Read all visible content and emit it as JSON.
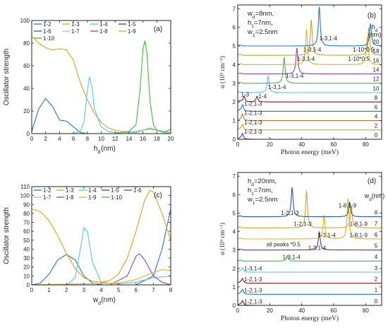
{
  "chart_data": [
    {
      "id": "a",
      "panel_label": "(a)",
      "type": "line",
      "xlabel": "h_d(nm)",
      "ylabel": "Oscillator strength",
      "xlim": [
        0,
        20
      ],
      "ylim": [
        0,
        100
      ],
      "xticks": [
        0,
        2,
        4,
        6,
        8,
        10,
        12,
        14,
        16,
        18,
        20
      ],
      "yticks": [
        0,
        20,
        40,
        60,
        80,
        100
      ],
      "legend": {
        "position": "top-left",
        "columns": 4
      },
      "series": [
        {
          "name": "1-2",
          "color": "#1f77d4",
          "x": [
            0,
            1,
            2,
            3,
            4,
            5,
            6,
            7,
            8,
            9,
            10,
            11,
            12,
            13,
            14,
            15,
            16,
            17,
            18,
            19,
            20
          ],
          "y": [
            2,
            22,
            31,
            24,
            12,
            11,
            6,
            1,
            0,
            0,
            0,
            0,
            0,
            0,
            0,
            0,
            0,
            0,
            0,
            0,
            0
          ]
        },
        {
          "name": "1-3",
          "color": "#e0a020",
          "x": [
            0,
            1,
            2,
            3,
            4,
            5,
            6,
            7,
            8,
            9,
            10,
            11,
            12,
            13,
            14,
            15,
            16,
            17,
            18,
            19,
            20
          ],
          "y": [
            86,
            80,
            76,
            74,
            75,
            74,
            65,
            45,
            30,
            18,
            10,
            5,
            3,
            2,
            1,
            1,
            3,
            5,
            3,
            1,
            0
          ]
        },
        {
          "name": "1-4",
          "color": "#4ec8e8",
          "x": [
            0,
            1,
            2,
            3,
            4,
            5,
            6,
            7,
            7.5,
            8,
            8.3,
            8.7,
            9,
            10,
            11,
            12,
            13,
            14,
            15,
            16,
            17,
            18,
            19,
            20
          ],
          "y": [
            0,
            0,
            0,
            0,
            0,
            0,
            0,
            2,
            10,
            38,
            50,
            40,
            22,
            6,
            2,
            1,
            1,
            1,
            2,
            3,
            4,
            3,
            2,
            1
          ]
        },
        {
          "name": "1-5",
          "color": "#6a2c91",
          "x": [
            0,
            20
          ],
          "y": [
            0,
            0
          ]
        },
        {
          "name": "1-6",
          "color": "#1f5aa6",
          "x": [
            0,
            20
          ],
          "y": [
            0,
            0
          ]
        },
        {
          "name": "1-7",
          "color": "#e6a4c0",
          "x": [
            0,
            20
          ],
          "y": [
            0,
            0
          ]
        },
        {
          "name": "1-8",
          "color": "#8e44ad",
          "x": [
            0,
            20
          ],
          "y": [
            0,
            0
          ]
        },
        {
          "name": "1-9",
          "color": "#e8b020",
          "x": [
            0,
            20
          ],
          "y": [
            0,
            0
          ]
        },
        {
          "name": "1-10",
          "color": "#3cbf3c",
          "x": [
            0,
            12,
            14,
            15,
            15.6,
            16,
            16.3,
            16.6,
            17,
            17.5,
            18,
            19,
            20
          ],
          "y": [
            0,
            0,
            2,
            8,
            40,
            75,
            82,
            70,
            30,
            8,
            3,
            1,
            4
          ]
        }
      ]
    },
    {
      "id": "c",
      "panel_label": "(c)",
      "type": "line",
      "xlabel": "w_d(nm)",
      "ylabel": "Oscillator strength",
      "xlim": [
        0,
        8
      ],
      "ylim": [
        0,
        110
      ],
      "xticks": [
        0,
        1,
        2,
        3,
        4,
        5,
        6,
        7,
        8
      ],
      "yticks": [
        0,
        10,
        20,
        30,
        40,
        50,
        60,
        70,
        80,
        90,
        100,
        110
      ],
      "legend": {
        "position": "top-left",
        "columns": 5
      },
      "series": [
        {
          "name": "1-2",
          "color": "#1f77d4",
          "x": [
            0,
            0.5,
            1,
            1.5,
            2,
            2.5,
            3,
            3.5,
            4,
            5,
            6,
            7,
            7.5,
            8
          ],
          "y": [
            0,
            2,
            12,
            28,
            34,
            28,
            10,
            2,
            0,
            0,
            0,
            10,
            40,
            85
          ]
        },
        {
          "name": "1-3",
          "color": "#e0a020",
          "x": [
            0,
            0.5,
            1,
            1.5,
            2,
            2.5,
            3,
            3.5,
            4,
            4.5,
            5,
            5.5,
            6,
            6.5,
            6.8,
            7,
            7.5,
            8
          ],
          "y": [
            85,
            82,
            72,
            55,
            35,
            18,
            8,
            4,
            3,
            5,
            12,
            30,
            60,
            95,
            106,
            104,
            80,
            50
          ]
        },
        {
          "name": "1-4",
          "color": "#4ec8e8",
          "x": [
            0,
            2,
            2.5,
            2.8,
            3,
            3.2,
            3.5,
            4,
            5,
            6,
            7,
            8
          ],
          "y": [
            0,
            0,
            8,
            40,
            64,
            60,
            25,
            3,
            1,
            3,
            8,
            10
          ]
        },
        {
          "name": "1-5",
          "color": "#6a2c91",
          "x": [
            0,
            8
          ],
          "y": [
            0,
            0
          ]
        },
        {
          "name": "1-6",
          "color": "#1f5aa6",
          "x": [
            0,
            8
          ],
          "y": [
            0,
            0
          ]
        },
        {
          "name": "1-7",
          "color": "#e6a4c0",
          "x": [
            0,
            8
          ],
          "y": [
            0,
            0
          ]
        },
        {
          "name": "1-8",
          "color": "#8e44ad",
          "x": [
            0,
            4.5,
            5.5,
            6,
            6.2,
            6.5,
            7,
            7.5,
            8
          ],
          "y": [
            0,
            0,
            10,
            32,
            35,
            28,
            10,
            3,
            0
          ]
        },
        {
          "name": "1-9",
          "color": "#e8b020",
          "x": [
            0,
            5,
            6,
            7,
            7.5,
            8
          ],
          "y": [
            0,
            2,
            6,
            14,
            17,
            16
          ]
        },
        {
          "name": "1-10",
          "color": "#3cbf3c",
          "x": [
            0,
            8
          ],
          "y": [
            0,
            0
          ]
        }
      ]
    },
    {
      "id": "b",
      "panel_label": "(b)",
      "type": "line",
      "xlabel": "Photon energy (meV)",
      "ylabel": "α (10⁵ cm⁻¹)",
      "xlim": [
        0,
        90
      ],
      "ylim": [
        0,
        7.2
      ],
      "xticks": [
        0,
        20,
        40,
        60,
        80
      ],
      "yticks": [
        0,
        1,
        2,
        3,
        4,
        5,
        6,
        7
      ],
      "params": [
        "w_d=8nm,",
        "h_1=7nm,",
        "w_1=2.5nm"
      ],
      "series_param_header": [
        "h_d",
        "(nm)"
      ],
      "series": [
        {
          "name": "0",
          "color": "#6a2c91",
          "offset": 0.0,
          "peaks": [
            [
              3,
              0.3
            ]
          ]
        },
        {
          "name": "2",
          "color": "#e0a020",
          "offset": 0.5,
          "peaks": [
            [
              3,
              0.3
            ]
          ]
        },
        {
          "name": "4",
          "color": "#c0722a",
          "offset": 1.0,
          "peaks": [
            [
              3,
              0.35
            ]
          ]
        },
        {
          "name": "6",
          "color": "#1f77d4",
          "offset": 1.5,
          "peaks": [
            [
              3,
              0.35
            ]
          ]
        },
        {
          "name": "8",
          "color": "#8b1a1a",
          "offset": 2.0,
          "peaks": [
            [
              4,
              0.3
            ],
            [
              12,
              0.3
            ]
          ]
        },
        {
          "name": "10",
          "color": "#4ec8e8",
          "offset": 2.5,
          "peaks": [
            [
              19,
              0.9
            ]
          ]
        },
        {
          "name": "12",
          "color": "#3cbf3c",
          "offset": 3.0,
          "peaks": [
            [
              29,
              1.4
            ]
          ]
        },
        {
          "name": "14",
          "color": "#8e44ad",
          "offset": 3.5,
          "peaks": [
            [
              37,
              1.4
            ]
          ]
        },
        {
          "name": "16",
          "color": "#e8b020",
          "offset": 4.0,
          "peaks": [
            [
              43,
              1.9
            ],
            [
              81,
              1.5
            ]
          ]
        },
        {
          "name": "18",
          "color": "#c9a227",
          "offset": 4.5,
          "peaks": [
            [
              46,
              1.9
            ],
            [
              82,
              1.5
            ]
          ]
        },
        {
          "name": "20",
          "color": "#1f77d4",
          "offset": 5.0,
          "peaks": [
            [
              51,
              2.1
            ],
            [
              83,
              1.2
            ]
          ]
        }
      ],
      "annotations": [
        {
          "text": "1-3,1-4",
          "x": 51,
          "y": 5.3,
          "color": "#1f77d4"
        },
        {
          "text": "1-3,1-4",
          "x": 41,
          "y": 4.7,
          "color": "#333"
        },
        {
          "text": "1-10*0.5",
          "x": 72,
          "y": 4.7,
          "color": "#333"
        },
        {
          "text": "1-3,1-4",
          "x": 37,
          "y": 4.2,
          "color": "#333"
        },
        {
          "text": "1-10*0.5",
          "x": 69,
          "y": 4.2,
          "color": "#333"
        },
        {
          "text": "1-3,1-4",
          "x": 30,
          "y": 3.3,
          "color": "#333"
        },
        {
          "text": "1-3,1-4",
          "x": 19,
          "y": 2.7,
          "color": "#333"
        },
        {
          "text": "1-3",
          "x": 2,
          "y": 2.3,
          "color": "#333"
        },
        {
          "text": "1-4",
          "x": 13,
          "y": 2.2,
          "color": "#333"
        },
        {
          "text": "1-2,1-3",
          "x": 4,
          "y": 1.8,
          "color": "#333"
        },
        {
          "text": "1-2,1-3",
          "x": 4,
          "y": 1.3,
          "color": "#333"
        },
        {
          "text": "1-2,1-3",
          "x": 4,
          "y": 0.8,
          "color": "#333"
        },
        {
          "text": "1-2,1-3",
          "x": 4,
          "y": 0.3,
          "color": "#333"
        }
      ]
    },
    {
      "id": "d",
      "panel_label": "(d)",
      "type": "line",
      "xlabel": "Photon energy (meV)",
      "ylabel": "α (10⁵ cm⁻¹)",
      "xlim": [
        0,
        90
      ],
      "ylim": [
        0,
        7.2
      ],
      "xticks": [
        0,
        20,
        40,
        60,
        80
      ],
      "yticks": [
        0,
        1,
        2,
        3,
        4,
        5,
        6,
        7
      ],
      "params": [
        "h_d=20nm,",
        "h_1=7nm,",
        "w_1=2.5nm"
      ],
      "series_param_header": [
        "w_d(nm)"
      ],
      "series": [
        {
          "name": "0",
          "color": "#8b1a1a",
          "offset": 0.0,
          "peaks": [
            [
              3,
              0.25
            ]
          ]
        },
        {
          "name": "1",
          "color": "#1f77d4",
          "offset": 0.6,
          "peaks": [
            [
              3,
              0.25
            ]
          ]
        },
        {
          "name": "2",
          "color": "#8b1a1a",
          "offset": 1.2,
          "peaks": [
            [
              3,
              0.25
            ]
          ]
        },
        {
          "name": "3",
          "color": "#4ec8e8",
          "offset": 1.8,
          "peaks": [
            [
              3,
              0.25
            ]
          ]
        },
        {
          "name": "4",
          "color": "#3cbf3c",
          "offset": 2.4,
          "peaks": [
            [
              31,
              0.3
            ]
          ]
        },
        {
          "name": "5",
          "color": "#6a2c91",
          "offset": 3.0,
          "peaks": [
            [
              51,
              1.0
            ]
          ]
        },
        {
          "name": "6",
          "color": "#e8b020",
          "offset": 3.6,
          "peaks": [
            [
              54,
              1.3
            ],
            [
              69,
              2.2
            ]
          ]
        },
        {
          "name": "7",
          "color": "#e0a020",
          "offset": 4.2,
          "peaks": [
            [
              43,
              2.0
            ],
            [
              71,
              1.2
            ]
          ]
        },
        {
          "name": "8",
          "color": "#1f5aa6",
          "offset": 4.8,
          "peaks": [
            [
              34,
              1.6
            ],
            [
              70,
              0.8
            ]
          ]
        }
      ],
      "annotations": [
        {
          "text": "1-2,1-3",
          "x": 27,
          "y": 4.9,
          "color": "#333"
        },
        {
          "text": "1-8,1-9",
          "x": 63,
          "y": 5.3,
          "color": "#333"
        },
        {
          "text": "1-2,1-3",
          "x": 35,
          "y": 4.3,
          "color": "#333"
        },
        {
          "text": "1-8,1-9",
          "x": 70,
          "y": 4.3,
          "color": "#333"
        },
        {
          "text": "1-3,1-4",
          "x": 50,
          "y": 3.7,
          "color": "#333"
        },
        {
          "text": "1-8,1-9",
          "x": 70,
          "y": 3.7,
          "color": "#333"
        },
        {
          "text": "all peaks *0.5",
          "x": 18,
          "y": 3.2,
          "color": "#c0392b"
        },
        {
          "text": "1-3,1-4",
          "x": 44,
          "y": 3.0,
          "color": "#333"
        },
        {
          "text": "1-3,1-4",
          "x": 28,
          "y": 2.5,
          "color": "#333"
        },
        {
          "text": "1-3,1-4",
          "x": 4,
          "y": 1.9,
          "color": "#333"
        },
        {
          "text": "1-2,1-3",
          "x": 4,
          "y": 1.3,
          "color": "#333"
        },
        {
          "text": "1-2,1-3",
          "x": 4,
          "y": 0.7,
          "color": "#333"
        },
        {
          "text": "1-2,1-3",
          "x": 4,
          "y": 0.1,
          "color": "#333"
        }
      ]
    }
  ]
}
